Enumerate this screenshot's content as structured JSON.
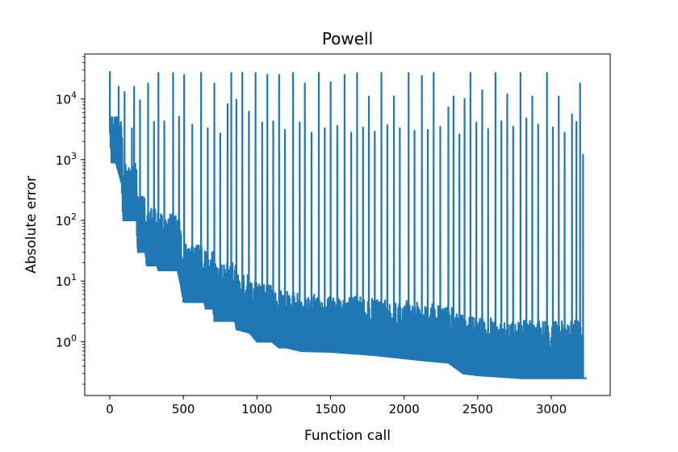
{
  "chart_data": {
    "type": "line",
    "title": "Powell",
    "xlabel": "Function call",
    "ylabel": "Absolute error",
    "xlim": [
      -170,
      3400
    ],
    "ylim": [
      0.13,
      55000
    ],
    "yscale": "log",
    "grid": false,
    "legend": "none",
    "xticks": [
      0,
      500,
      1000,
      1500,
      2000,
      2500,
      3000
    ],
    "xtick_labels": [
      "0",
      "500",
      "1000",
      "1500",
      "2000",
      "2500",
      "3000"
    ],
    "yticks": [
      1,
      10,
      100,
      1000,
      10000
    ],
    "ytick_labels": [
      {
        "base": "10",
        "exp": "0"
      },
      {
        "base": "10",
        "exp": "1"
      },
      {
        "base": "10",
        "exp": "2"
      },
      {
        "base": "10",
        "exp": "3"
      },
      {
        "base": "10",
        "exp": "4"
      }
    ],
    "series": [
      {
        "color": "#1f77b4",
        "floor": [
          [
            0,
            3500
          ],
          [
            10,
            900
          ],
          [
            40,
            900
          ],
          [
            70,
            500
          ],
          [
            80,
            400
          ],
          [
            90,
            100
          ],
          [
            180,
            100
          ],
          [
            190,
            30
          ],
          [
            240,
            30
          ],
          [
            250,
            18
          ],
          [
            320,
            18
          ],
          [
            330,
            15
          ],
          [
            460,
            15
          ],
          [
            480,
            9
          ],
          [
            500,
            4.5
          ],
          [
            640,
            4.5
          ],
          [
            650,
            3.5
          ],
          [
            700,
            3.5
          ],
          [
            710,
            2.2
          ],
          [
            850,
            2.2
          ],
          [
            860,
            1.6
          ],
          [
            950,
            1.4
          ],
          [
            1000,
            1.0
          ],
          [
            1100,
            1.0
          ],
          [
            1150,
            0.8
          ],
          [
            1200,
            0.8
          ],
          [
            1300,
            0.7
          ],
          [
            1500,
            0.68
          ],
          [
            1800,
            0.6
          ],
          [
            2100,
            0.5
          ],
          [
            2300,
            0.45
          ],
          [
            2400,
            0.3
          ],
          [
            2500,
            0.28
          ],
          [
            2800,
            0.25
          ],
          [
            3220,
            0.25
          ],
          [
            3240,
            0.25
          ]
        ],
        "spikes": [
          [
            0,
            28000
          ],
          [
            60,
            16000
          ],
          [
            75,
            4200
          ],
          [
            100,
            13000
          ],
          [
            150,
            3300
          ],
          [
            165,
            16000
          ],
          [
            205,
            9500
          ],
          [
            260,
            18000
          ],
          [
            300,
            4200
          ],
          [
            330,
            27000
          ],
          [
            370,
            4300
          ],
          [
            430,
            27000
          ],
          [
            470,
            5100
          ],
          [
            505,
            25000
          ],
          [
            560,
            3800
          ],
          [
            620,
            27000
          ],
          [
            665,
            3300
          ],
          [
            710,
            18000
          ],
          [
            750,
            2700
          ],
          [
            800,
            8200
          ],
          [
            825,
            27000
          ],
          [
            860,
            9700
          ],
          [
            900,
            27000
          ],
          [
            945,
            6200
          ],
          [
            990,
            27000
          ],
          [
            1035,
            4100
          ],
          [
            1070,
            25000
          ],
          [
            1110,
            4300
          ],
          [
            1150,
            25000
          ],
          [
            1190,
            3100
          ],
          [
            1245,
            27000
          ],
          [
            1290,
            4100
          ],
          [
            1325,
            18000
          ],
          [
            1370,
            2800
          ],
          [
            1420,
            27000
          ],
          [
            1460,
            3300
          ],
          [
            1500,
            19000
          ],
          [
            1545,
            3600
          ],
          [
            1595,
            25000
          ],
          [
            1640,
            2800
          ],
          [
            1680,
            27000
          ],
          [
            1720,
            3400
          ],
          [
            1760,
            11000
          ],
          [
            1800,
            2900
          ],
          [
            1845,
            27000
          ],
          [
            1885,
            3700
          ],
          [
            1930,
            11000
          ],
          [
            1970,
            3300
          ],
          [
            2030,
            27000
          ],
          [
            2070,
            3000
          ],
          [
            2120,
            24000
          ],
          [
            2160,
            3100
          ],
          [
            2200,
            27000
          ],
          [
            2245,
            3500
          ],
          [
            2300,
            7300
          ],
          [
            2335,
            11000
          ],
          [
            2375,
            2600
          ],
          [
            2410,
            10000
          ],
          [
            2450,
            27000
          ],
          [
            2490,
            4100
          ],
          [
            2530,
            14000
          ],
          [
            2570,
            3200
          ],
          [
            2620,
            27000
          ],
          [
            2660,
            4300
          ],
          [
            2700,
            12000
          ],
          [
            2740,
            3500
          ],
          [
            2790,
            27000
          ],
          [
            2830,
            4800
          ],
          [
            2870,
            11000
          ],
          [
            2910,
            3800
          ],
          [
            2970,
            27000
          ],
          [
            3010,
            3400
          ],
          [
            3050,
            11000
          ],
          [
            3090,
            2800
          ],
          [
            3140,
            5600
          ],
          [
            3170,
            4200
          ],
          [
            3195,
            18000
          ],
          [
            3215,
            1200
          ]
        ]
      }
    ]
  }
}
